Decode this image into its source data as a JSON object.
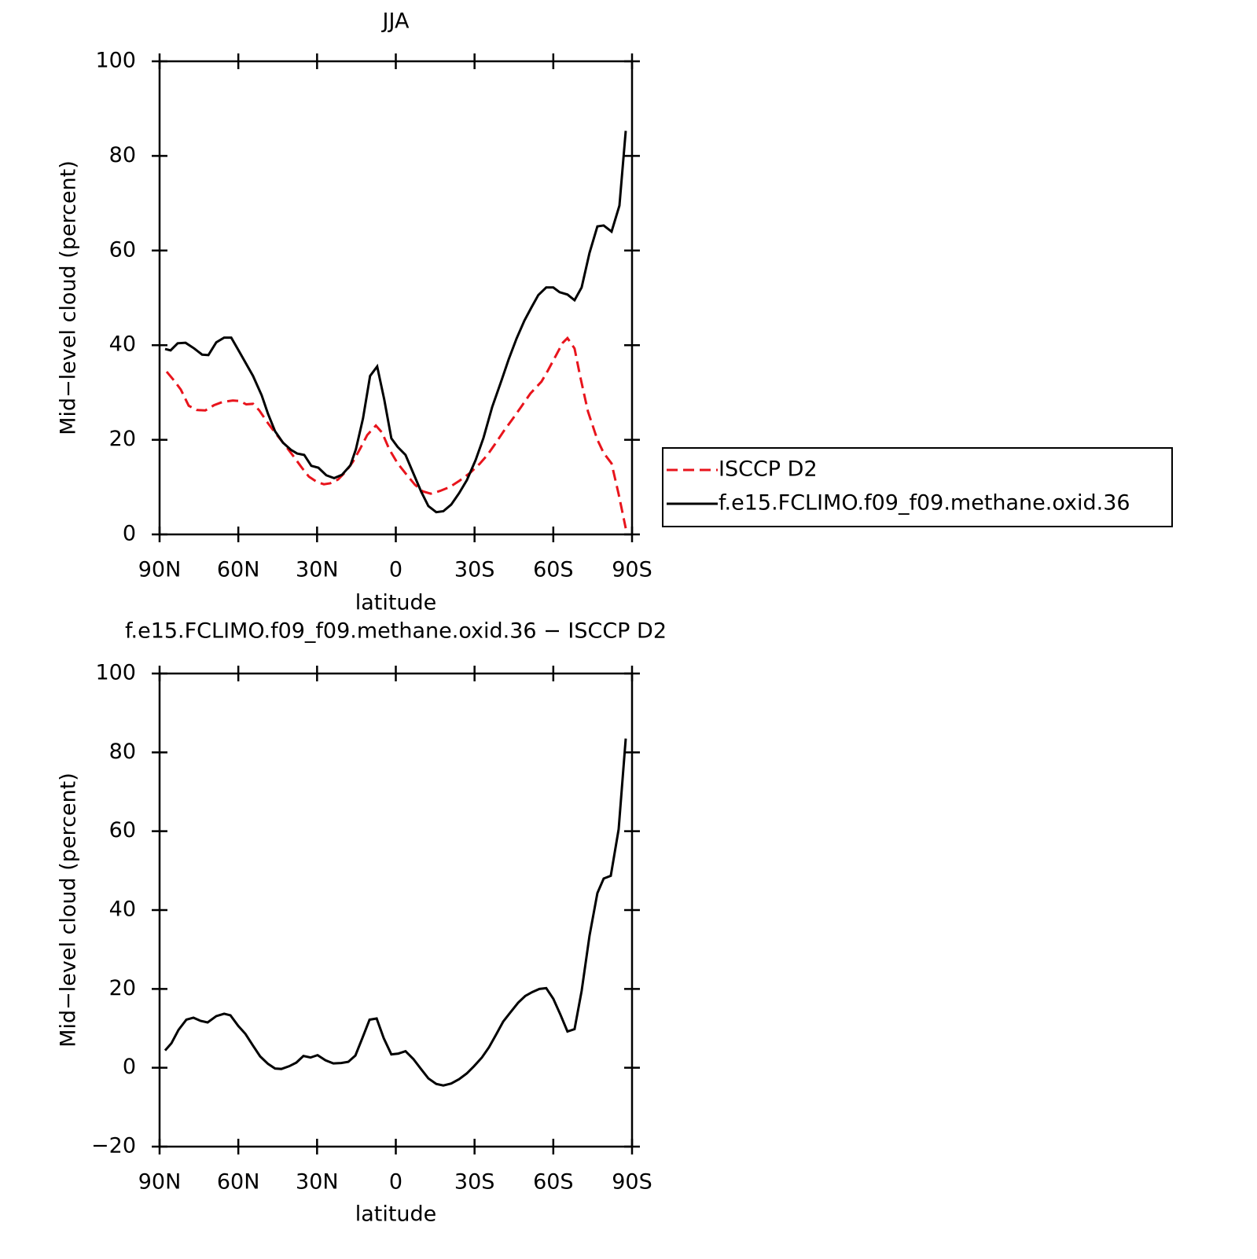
{
  "chart_data": [
    {
      "type": "line",
      "title": "JJA",
      "xlabel": "latitude",
      "ylabel": "Mid−level cloud (percent)",
      "xlim": [
        90,
        -90
      ],
      "xticks": [
        {
          "value": 90,
          "label": "90N"
        },
        {
          "value": 60,
          "label": "60N"
        },
        {
          "value": 30,
          "label": "30N"
        },
        0,
        {
          "value": -30,
          "label": "30S"
        },
        {
          "value": -60,
          "label": "60S"
        },
        {
          "value": -90,
          "label": "90S"
        }
      ],
      "ylim": [
        0,
        100
      ],
      "yticks": [
        0,
        20,
        40,
        60,
        80,
        100
      ],
      "legend": "right",
      "series": [
        {
          "name": "ISCCP D2",
          "color": "#e8141c",
          "dash": "dashed",
          "x": [
            87.3,
            84.3,
            81.9,
            78.9,
            75.9,
            72.6,
            69.3,
            66,
            62.1,
            59.5,
            57,
            54.4,
            52,
            48.7,
            46,
            42.4,
            39.1,
            35.8,
            33.1,
            30.1,
            27.4,
            25,
            22,
            19,
            16.3,
            13.6,
            10.9,
            7.6,
            5.2,
            2.5,
            -0.7,
            -4.3,
            -7.3,
            -10.3,
            -13.3,
            -16.9,
            -20.5,
            -24.4,
            -28.3,
            -31.9,
            -34.9,
            -38.2,
            -41.2,
            -44.5,
            -47.8,
            -51.3,
            -55.5,
            -57.9,
            -60.9,
            -63.6,
            -65.4,
            -68.1,
            -70.2,
            -73.2,
            -76.8,
            -79.2,
            -82.2,
            -84.9,
            -87.6
          ],
          "values": [
            34.4,
            32.4,
            30.6,
            27.2,
            26.3,
            26.2,
            27.3,
            28,
            28.3,
            28.2,
            27.5,
            27.6,
            26.2,
            23.5,
            21.5,
            19,
            16.6,
            14.1,
            12.2,
            11.1,
            10.6,
            10.8,
            11.6,
            13.3,
            15.4,
            18.1,
            21,
            23,
            21.5,
            18,
            15,
            12.5,
            10.5,
            9.1,
            8.6,
            9.2,
            10,
            11.4,
            13,
            14.9,
            16.8,
            19.4,
            21.9,
            24.4,
            27,
            29.8,
            32.3,
            34.6,
            37.7,
            40.5,
            41.5,
            39.3,
            33.5,
            26,
            20,
            17.2,
            15,
            8.5,
            1.3
          ]
        },
        {
          "name": "f.e15.FCLIMO.f09_f09.methane.oxid.36",
          "color": "#000000",
          "dash": "solid",
          "x": [
            87.9,
            85.8,
            83.1,
            80.1,
            76.8,
            73.8,
            71.4,
            68.4,
            65.4,
            62.7,
            59.5,
            54.4,
            51.1,
            48.7,
            46,
            43,
            40,
            37.6,
            34.9,
            32.2,
            29.5,
            26.5,
            23.5,
            20.5,
            17.3,
            15.2,
            12.5,
            9.8,
            7.1,
            4.4,
            1.7,
            -0.7,
            -3.7,
            -7,
            -9.7,
            -12.4,
            -15.4,
            -18.1,
            -21.1,
            -24.1,
            -27.1,
            -30.4,
            -33.4,
            -36.7,
            -40.3,
            -43,
            -46,
            -49,
            -51.6,
            -54.3,
            -57.3,
            -60,
            -62.4,
            -65.4,
            -68.1,
            -70.8,
            -73.8,
            -76.8,
            -79.2,
            -82.2,
            -85.2,
            -87.6
          ],
          "values": [
            39.2,
            38.9,
            40.4,
            40.5,
            39.3,
            38,
            37.9,
            40.6,
            41.6,
            41.6,
            38.5,
            33.5,
            29.4,
            25.5,
            21.8,
            19.4,
            17.9,
            17.1,
            16.8,
            14.5,
            14.1,
            12.5,
            11.9,
            12.6,
            14.6,
            18,
            24.5,
            33.5,
            35.5,
            28.5,
            20.3,
            18.5,
            16.8,
            12.5,
            9,
            6,
            4.7,
            4.9,
            6.3,
            8.7,
            11.5,
            15.7,
            20.4,
            26.9,
            32.6,
            37,
            41.4,
            45.2,
            47.9,
            50.6,
            52.2,
            52.2,
            51.2,
            50.7,
            49.5,
            52.2,
            59.5,
            65.1,
            65.3,
            64,
            69.5,
            85.3
          ]
        }
      ]
    },
    {
      "type": "line",
      "title": "f.e15.FCLIMO.f09_f09.methane.oxid.36 − ISCCP D2",
      "xlabel": "latitude",
      "ylabel": "Mid−level cloud (percent)",
      "xlim": [
        90,
        -90
      ],
      "xticks": [
        {
          "value": 90,
          "label": "90N"
        },
        {
          "value": 60,
          "label": "60N"
        },
        {
          "value": 30,
          "label": "30N"
        },
        0,
        {
          "value": -30,
          "label": "30S"
        },
        {
          "value": -60,
          "label": "60S"
        },
        {
          "value": -90,
          "label": "90S"
        }
      ],
      "ylim": [
        -20,
        100
      ],
      "yticks": [
        {
          "value": -20,
          "label": "−20"
        },
        0,
        20,
        40,
        60,
        80,
        100
      ],
      "series": [
        {
          "color": "#000000",
          "dash": "solid",
          "x": [
            87.9,
            85.5,
            82.8,
            79.8,
            77.1,
            74.4,
            71.7,
            68.4,
            65.4,
            63,
            60,
            57.3,
            54.4,
            51.7,
            48.7,
            46,
            43.6,
            40.6,
            37.9,
            35.2,
            32.5,
            29.8,
            26.8,
            23.8,
            20.8,
            18.1,
            15.4,
            12.7,
            10,
            7.3,
            4.6,
            1.7,
            -1,
            -3.7,
            -6.7,
            -9.7,
            -12.4,
            -15.4,
            -18.1,
            -21.1,
            -24.1,
            -27.1,
            -29.8,
            -32.8,
            -35.5,
            -38.2,
            -40.9,
            -43.6,
            -46.6,
            -49.3,
            -52,
            -54.7,
            -57.3,
            -60,
            -62.7,
            -65.4,
            -68.1,
            -70.8,
            -73.8,
            -76.8,
            -79.2,
            -81.9,
            -84.9,
            -87.6
          ],
          "values": [
            4.4,
            6.2,
            9.6,
            12.2,
            12.7,
            11.9,
            11.5,
            13.1,
            13.7,
            13.3,
            10.6,
            8.6,
            5.6,
            2.9,
            1,
            -0.2,
            -0.3,
            0.4,
            1.3,
            3,
            2.6,
            3.2,
            1.9,
            1.1,
            1.2,
            1.5,
            3.1,
            7.6,
            12.2,
            12.5,
            7.5,
            3.4,
            3.6,
            4.2,
            2.2,
            -0.4,
            -2.7,
            -4.1,
            -4.5,
            -4,
            -2.9,
            -1.4,
            0.4,
            2.6,
            5.2,
            8.4,
            11.7,
            14,
            16.5,
            18.2,
            19.2,
            20,
            20.2,
            17.5,
            13.5,
            9.2,
            9.8,
            19.5,
            33.5,
            44.3,
            48,
            48.7,
            60.5,
            83.5
          ]
        }
      ]
    }
  ]
}
